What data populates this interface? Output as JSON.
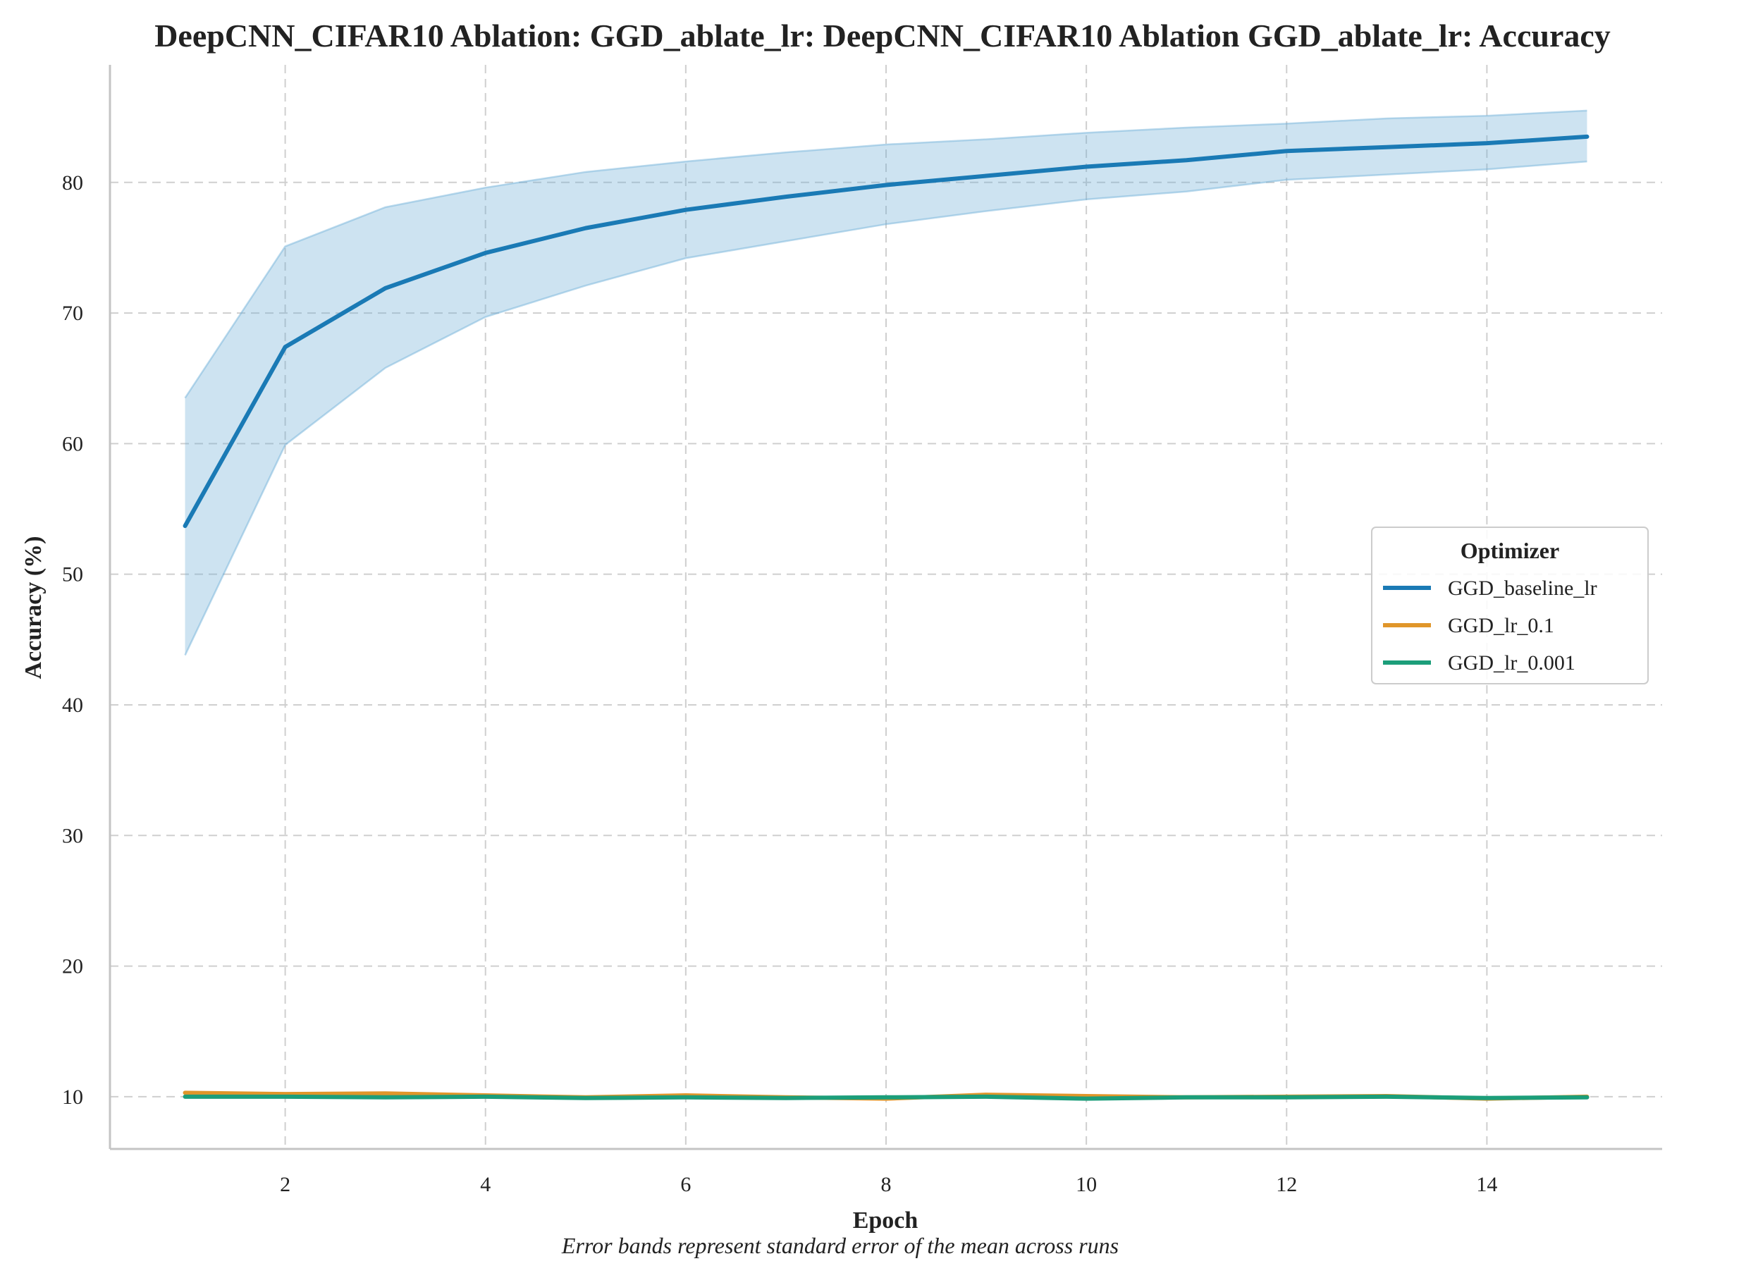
{
  "chart_data": {
    "type": "line",
    "title": "DeepCNN_CIFAR10 Ablation: GGD_ablate_lr: DeepCNN_CIFAR10 Ablation GGD_ablate_lr: Accuracy",
    "xlabel": "Epoch",
    "ylabel": "Accuracy (%)",
    "caption": "Error bands represent standard error of the mean across runs",
    "xlim": [
      0.25,
      15.75
    ],
    "ylim": [
      6,
      89
    ],
    "xticks": [
      2,
      4,
      6,
      8,
      10,
      12,
      14
    ],
    "yticks": [
      10,
      20,
      30,
      40,
      50,
      60,
      70,
      80
    ],
    "grid": true,
    "legend": {
      "title": "Optimizer",
      "placement": "center-right"
    },
    "x": [
      1,
      2,
      3,
      4,
      5,
      6,
      7,
      8,
      9,
      10,
      11,
      12,
      13,
      14,
      15
    ],
    "series": [
      {
        "name": "GGD_baseline_lr",
        "color": "#1a7ab5",
        "band_color": "#6baed6",
        "values": [
          53.7,
          67.4,
          71.9,
          74.6,
          76.5,
          77.9,
          78.9,
          79.8,
          80.5,
          81.2,
          81.7,
          82.4,
          82.7,
          83.0,
          83.5
        ],
        "lower": [
          43.8,
          59.9,
          65.8,
          69.7,
          72.1,
          74.2,
          75.5,
          76.8,
          77.8,
          78.7,
          79.3,
          80.2,
          80.6,
          81.0,
          81.6
        ],
        "upper": [
          63.5,
          75.1,
          78.1,
          79.6,
          80.8,
          81.6,
          82.3,
          82.9,
          83.3,
          83.8,
          84.2,
          84.5,
          84.9,
          85.1,
          85.5
        ]
      },
      {
        "name": "GGD_lr_0.1",
        "color": "#e0962a",
        "values": [
          10.3,
          10.2,
          10.25,
          10.1,
          9.95,
          10.1,
          9.95,
          9.85,
          10.15,
          10.05,
          9.95,
          10.0,
          10.05,
          9.85,
          10.0
        ]
      },
      {
        "name": "GGD_lr_0.001",
        "color": "#1c9e7a",
        "values": [
          10.0,
          10.0,
          9.95,
          10.0,
          9.9,
          9.95,
          9.9,
          9.95,
          10.0,
          9.85,
          9.95,
          9.95,
          10.0,
          9.9,
          9.95
        ]
      }
    ]
  }
}
